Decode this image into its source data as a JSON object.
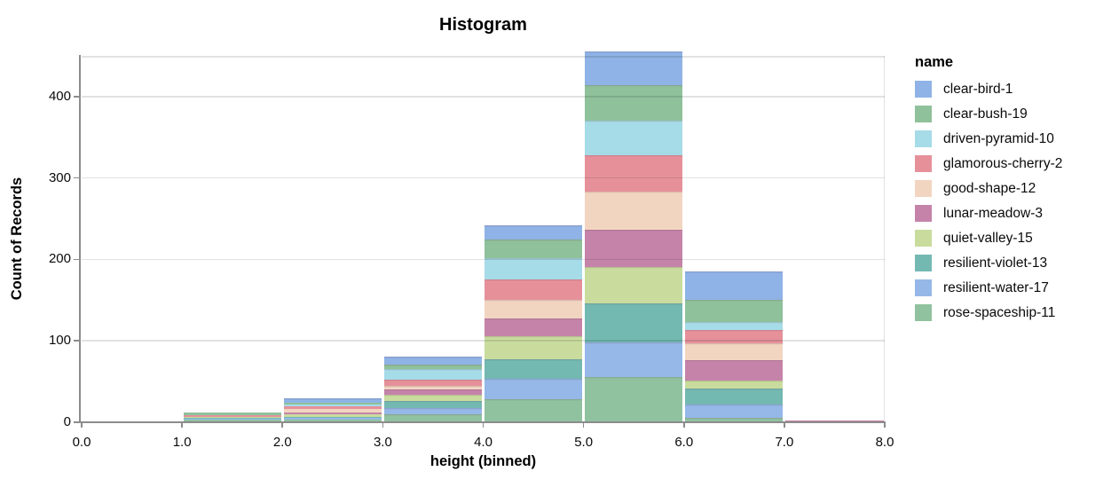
{
  "chart_data": {
    "type": "bar",
    "subtype": "stacked-histogram",
    "title": "Histogram",
    "xlabel": "height (binned)",
    "ylabel": "Count of Records",
    "legend_title": "name",
    "legend_position": "right",
    "grid": "horizontal-only",
    "background": "#ffffff",
    "axis_line_color": "#8c8c8c",
    "gridline_color": "#e0e0e0",
    "x_ticks": [
      "0.0",
      "1.0",
      "2.0",
      "3.0",
      "4.0",
      "5.0",
      "6.0",
      "7.0",
      "8.0"
    ],
    "x_tick_values": [
      0,
      1,
      2,
      3,
      4,
      5,
      6,
      7,
      8
    ],
    "y_ticks": [
      "0",
      "100",
      "200",
      "300",
      "400"
    ],
    "y_tick_values": [
      0,
      100,
      200,
      300,
      400
    ],
    "xlim": [
      0,
      8
    ],
    "ylim": [
      0,
      450
    ],
    "bin_edges": [
      0,
      1,
      2,
      3,
      4,
      5,
      6,
      7,
      8
    ],
    "bin_totals": [
      1,
      12,
      29,
      81,
      242,
      455,
      185,
      2
    ],
    "series": [
      {
        "name": "clear-bird-1",
        "color": "#8fb3e6",
        "values": [
          0,
          0,
          5,
          10,
          18,
          41,
          35,
          0
        ]
      },
      {
        "name": "clear-bush-19",
        "color": "#8fc19b",
        "values": [
          0,
          3,
          2,
          6,
          22,
          43,
          27,
          0
        ]
      },
      {
        "name": "driven-pyramid-10",
        "color": "#a6dbe8",
        "values": [
          0,
          0,
          2,
          13,
          27,
          43,
          10,
          0
        ]
      },
      {
        "name": "glamorous-cherry-2",
        "color": "#e6919a",
        "values": [
          0,
          2,
          4,
          7,
          25,
          45,
          16,
          0
        ]
      },
      {
        "name": "good-shape-12",
        "color": "#f2d5c1",
        "values": [
          0,
          0,
          4,
          5,
          22,
          47,
          21,
          0
        ]
      },
      {
        "name": "lunar-meadow-3",
        "color": "#c583a9",
        "values": [
          0,
          0,
          2,
          6,
          22,
          45,
          25,
          1
        ]
      },
      {
        "name": "quiet-valley-15",
        "color": "#c9dc9e",
        "values": [
          1,
          1,
          3,
          8,
          29,
          45,
          10,
          0
        ]
      },
      {
        "name": "resilient-violet-13",
        "color": "#73b9b2",
        "values": [
          0,
          2,
          2,
          9,
          24,
          48,
          19,
          0
        ]
      },
      {
        "name": "resilient-water-17",
        "color": "#95b8e8",
        "values": [
          0,
          1,
          2,
          7,
          25,
          42,
          17,
          1
        ]
      },
      {
        "name": "rose-spaceship-11",
        "color": "#90c2a0",
        "values": [
          0,
          3,
          3,
          10,
          28,
          56,
          5,
          0
        ]
      }
    ],
    "stack_order_bottom_to_top": [
      "rose-spaceship-11",
      "resilient-water-17",
      "resilient-violet-13",
      "quiet-valley-15",
      "lunar-meadow-3",
      "good-shape-12",
      "glamorous-cherry-2",
      "driven-pyramid-10",
      "clear-bush-19",
      "clear-bird-1"
    ]
  }
}
